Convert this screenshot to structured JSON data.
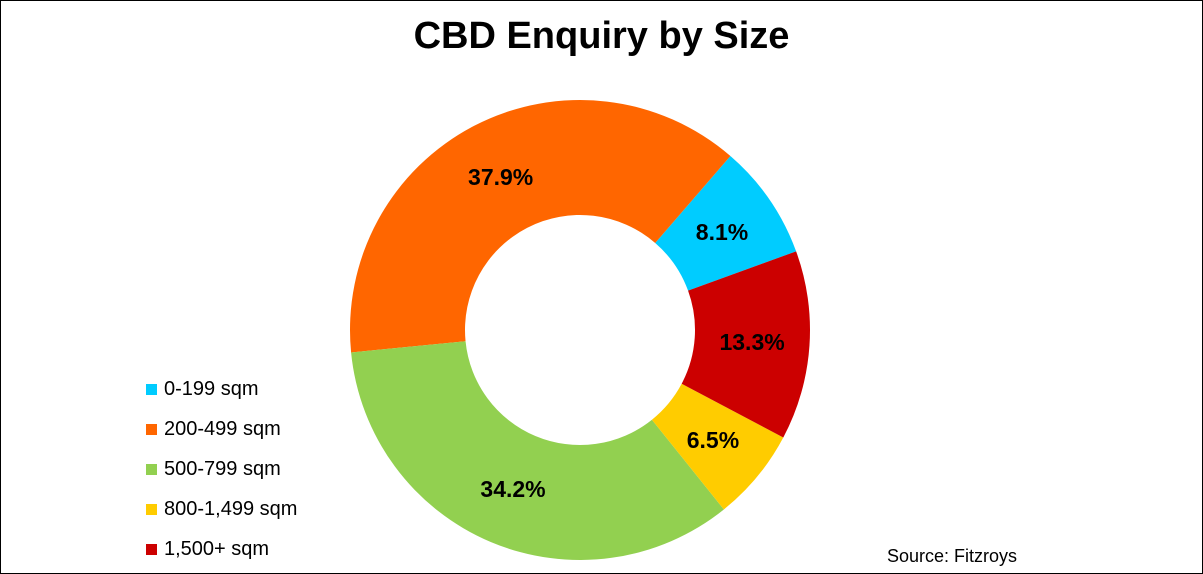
{
  "chart_data": {
    "type": "pie",
    "title": "CBD Enquiry by Size",
    "donut": true,
    "categories": [
      "0-199 sqm",
      "200-499 sqm",
      "500-799 sqm",
      "800-1,499 sqm",
      "1,500+ sqm"
    ],
    "values": [
      8.1,
      37.9,
      34.2,
      6.5,
      13.3
    ],
    "value_labels": [
      "8.1%",
      "37.9%",
      "34.2%",
      "6.5%",
      "13.3%"
    ],
    "colors": [
      "#00CCFF",
      "#FF6600",
      "#92D050",
      "#FFCC00",
      "#CC0000"
    ],
    "legend_position": "left",
    "unit": "%"
  },
  "source_note": "Source: Fitzroys"
}
